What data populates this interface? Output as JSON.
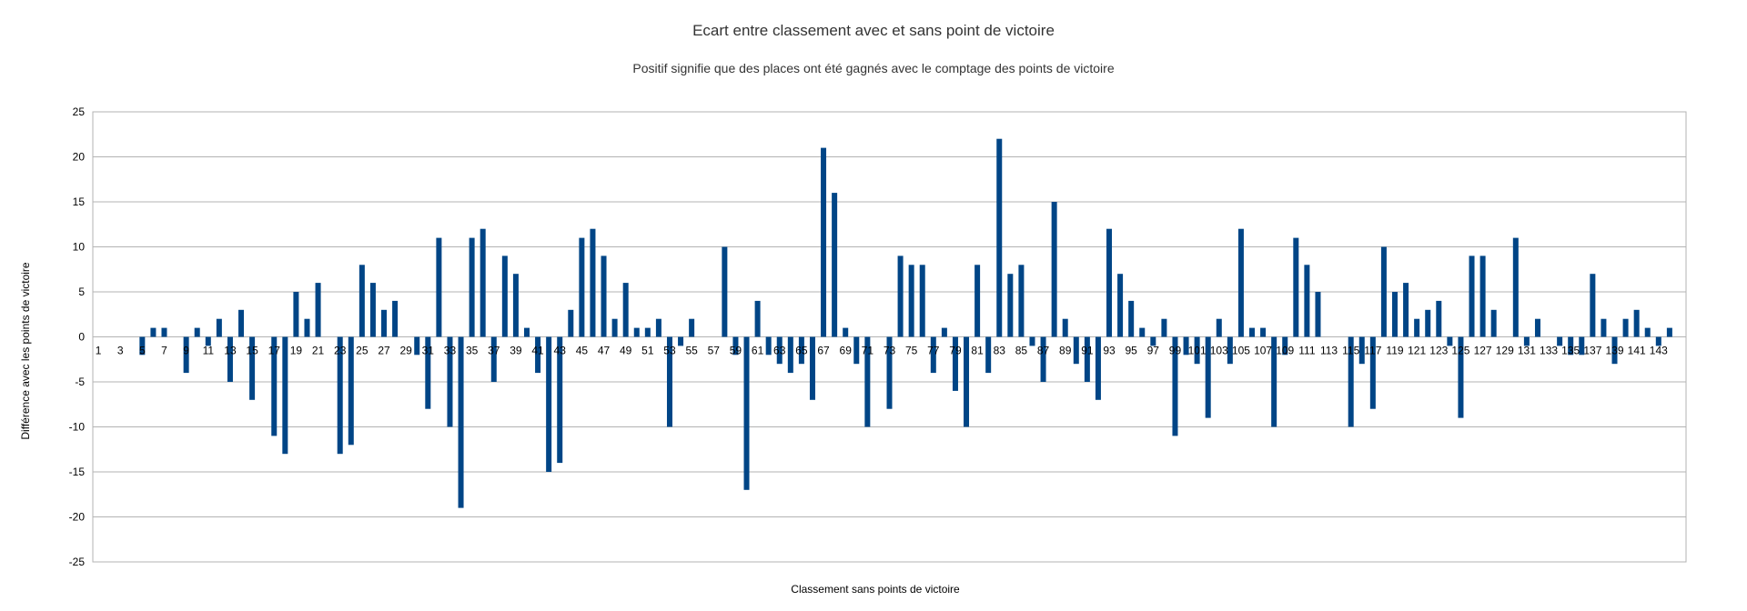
{
  "chart_data": {
    "type": "bar",
    "title": "Ecart entre classement avec et sans point de victoire",
    "subtitle": "Positif signifie que des places ont été gagnés avec le comptage des points de victoire",
    "xlabel": "Classement sans points de victoire",
    "ylabel": "Différence avec les points de victoire",
    "ylim": [
      -25,
      25
    ],
    "yticks": [
      25,
      20,
      15,
      10,
      5,
      0,
      -5,
      -10,
      -15,
      -20,
      -25
    ],
    "grid": true,
    "legend": "none",
    "bar_color": "#004586",
    "x": [
      1,
      2,
      3,
      4,
      5,
      6,
      7,
      8,
      9,
      10,
      11,
      12,
      13,
      14,
      15,
      16,
      17,
      18,
      19,
      20,
      21,
      22,
      23,
      24,
      25,
      26,
      27,
      28,
      29,
      30,
      31,
      32,
      33,
      34,
      35,
      36,
      37,
      38,
      39,
      40,
      41,
      42,
      43,
      44,
      45,
      46,
      47,
      48,
      49,
      50,
      51,
      52,
      53,
      54,
      55,
      56,
      57,
      58,
      59,
      60,
      61,
      62,
      63,
      64,
      65,
      66,
      67,
      68,
      69,
      70,
      71,
      72,
      73,
      74,
      75,
      76,
      77,
      78,
      79,
      80,
      81,
      82,
      83,
      84,
      85,
      86,
      87,
      88,
      89,
      90,
      91,
      92,
      93,
      94,
      95,
      96,
      97,
      98,
      99,
      100,
      101,
      102,
      103,
      104,
      105,
      106,
      107,
      108,
      109,
      110,
      111,
      112,
      113,
      114,
      115,
      116,
      117,
      118,
      119,
      120,
      121,
      122,
      123,
      124,
      125,
      126,
      127,
      128,
      129,
      130,
      131,
      132,
      133,
      134,
      135,
      136,
      137,
      138,
      139,
      140,
      141,
      142,
      143,
      144,
      145
    ],
    "values": [
      0,
      0,
      0,
      0,
      -2,
      1,
      1,
      0,
      -4,
      1,
      -1,
      2,
      -5,
      3,
      -7,
      0,
      -11,
      -13,
      5,
      2,
      6,
      0,
      -13,
      -12,
      8,
      6,
      3,
      4,
      0,
      -2,
      -8,
      11,
      -10,
      -19,
      11,
      12,
      -5,
      9,
      7,
      1,
      -4,
      -15,
      -14,
      3,
      11,
      12,
      9,
      2,
      6,
      1,
      1,
      2,
      -10,
      -1,
      2,
      0,
      0,
      10,
      -2,
      -17,
      4,
      -2,
      -3,
      -4,
      -3,
      -7,
      21,
      16,
      1,
      -3,
      -10,
      0,
      -8,
      9,
      8,
      8,
      -4,
      1,
      -6,
      -10,
      8,
      -4,
      22,
      7,
      8,
      -1,
      -5,
      15,
      2,
      -3,
      -5,
      -7,
      12,
      7,
      4,
      1,
      -1,
      2,
      -11,
      -2,
      -3,
      -9,
      2,
      -3,
      12,
      1,
      1,
      -10,
      -2,
      11,
      8,
      5,
      0,
      0,
      -10,
      -3,
      -8,
      10,
      5,
      6,
      2,
      3,
      4,
      -1,
      -9,
      9,
      9,
      3,
      0,
      11,
      -1,
      2,
      0,
      -1,
      -2,
      -2,
      7,
      2,
      -3,
      2,
      3,
      1,
      -1,
      1,
      0
    ],
    "xtick_labels": [
      "1",
      "3",
      "5",
      "7",
      "9",
      "11",
      "13",
      "15",
      "17",
      "19",
      "21",
      "23",
      "25",
      "27",
      "29",
      "31",
      "33",
      "35",
      "37",
      "39",
      "41",
      "43",
      "45",
      "47",
      "49",
      "51",
      "53",
      "55",
      "57",
      "59",
      "61",
      "63",
      "65",
      "67",
      "69",
      "71",
      "73",
      "75",
      "77",
      "79",
      "81",
      "83",
      "85",
      "87",
      "89",
      "91",
      "93",
      "95",
      "97",
      "99",
      "101",
      "103",
      "105",
      "107",
      "109",
      "111",
      "113",
      "115",
      "117",
      "119",
      "121",
      "123",
      "125",
      "127",
      "129",
      "131",
      "133",
      "135",
      "137",
      "139",
      "141",
      "143"
    ]
  }
}
